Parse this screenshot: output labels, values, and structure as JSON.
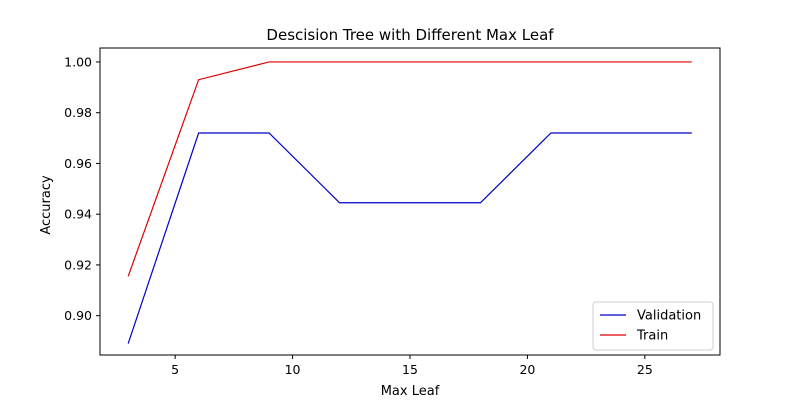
{
  "chart_data": {
    "type": "line",
    "title": "Descision Tree with Different Max Leaf",
    "xlabel": "Max Leaf",
    "ylabel": "Accuracy",
    "xlim": [
      1.8,
      28.2
    ],
    "ylim": [
      0.8845,
      1.0055
    ],
    "xticks": [
      5,
      10,
      15,
      20,
      25
    ],
    "yticks": [
      0.9,
      0.92,
      0.94,
      0.96,
      0.98,
      1.0
    ],
    "ytick_labels": [
      "0.90",
      "0.92",
      "0.94",
      "0.96",
      "0.98",
      "1.00"
    ],
    "grid": false,
    "legend_position": "lower-right",
    "x": [
      3,
      6,
      9,
      12,
      15,
      18,
      21,
      24,
      27
    ],
    "series": [
      {
        "name": "Validation",
        "color": "#0000cc",
        "values": [
          0.889,
          0.972,
          0.972,
          0.9445,
          0.9445,
          0.9445,
          0.972,
          0.972,
          0.972
        ]
      },
      {
        "name": "Train",
        "color": "#dd0000",
        "values": [
          0.9155,
          0.993,
          1.0,
          1.0,
          1.0,
          1.0,
          1.0,
          1.0,
          1.0
        ]
      }
    ]
  }
}
